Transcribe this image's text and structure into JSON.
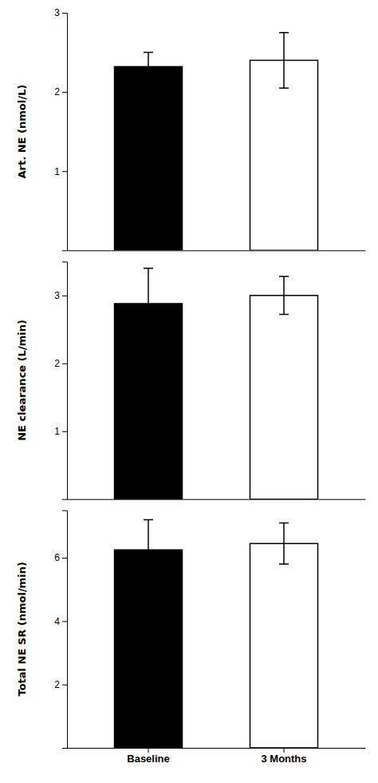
{
  "chart_data": [
    {
      "type": "bar",
      "ylabel": "Art. NE (nmol/L)",
      "categories": [
        "Baseline",
        "3 Months"
      ],
      "values": [
        2.32,
        2.4
      ],
      "errors": [
        0.18,
        0.35
      ],
      "colors": [
        "#000000",
        "#ffffff"
      ],
      "ylim": [
        0,
        3
      ],
      "yticks": [
        1,
        2,
        3
      ],
      "tick_labels": "y"
    },
    {
      "type": "bar",
      "ylabel": "NE clearance (L/min)",
      "categories": [
        "Baseline",
        "3 Months"
      ],
      "values": [
        2.88,
        3.0
      ],
      "errors": [
        0.52,
        0.28
      ],
      "colors": [
        "#000000",
        "#ffffff"
      ],
      "ylim": [
        0,
        3.5
      ],
      "yticks": [
        1,
        2,
        3
      ],
      "tick_labels": "y"
    },
    {
      "type": "bar",
      "ylabel": "Total NE SR (nmol/min)",
      "categories": [
        "Baseline",
        "3 Months"
      ],
      "values": [
        6.25,
        6.45
      ],
      "errors": [
        0.95,
        0.65
      ],
      "colors": [
        "#000000",
        "#ffffff"
      ],
      "ylim": [
        0,
        7.5
      ],
      "yticks": [
        2,
        4,
        6
      ]
    }
  ]
}
